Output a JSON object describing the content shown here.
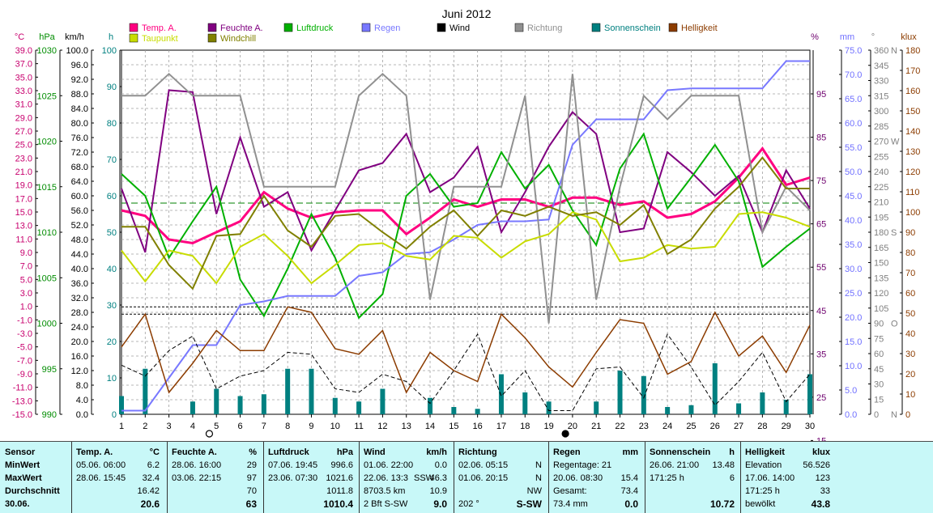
{
  "chart_data": {
    "type": "line",
    "title": "Juni 2012",
    "x": [
      1,
      2,
      3,
      4,
      5,
      6,
      7,
      8,
      9,
      10,
      11,
      12,
      13,
      14,
      15,
      16,
      17,
      18,
      19,
      20,
      21,
      22,
      23,
      24,
      25,
      26,
      27,
      28,
      29,
      30
    ],
    "left_axes": [
      {
        "unit": "°C",
        "color": "#c8006e",
        "ticks": [
          "39.0",
          "37.0",
          "35.0",
          "33.0",
          "31.0",
          "29.0",
          "27.0",
          "25.0",
          "23.0",
          "21.0",
          "19.0",
          "17.0",
          "15.0",
          "13.0",
          "11.0",
          "9.0",
          "7.0",
          "5.0",
          "3.0",
          "1.0",
          "-1.0",
          "-3.0",
          "-5.0",
          "-7.0",
          "-9.0",
          "-11.0",
          "-13.0",
          "-15.0"
        ]
      },
      {
        "unit": "hPa",
        "color": "#008c00",
        "ticks": [
          "1030",
          "1025",
          "1020",
          "1015",
          "1010",
          "1005",
          "1000",
          "995",
          "990"
        ]
      },
      {
        "unit": "km/h",
        "color": "#000000",
        "ticks": [
          "100.0",
          "96.0",
          "92.0",
          "88.0",
          "84.0",
          "80.0",
          "76.0",
          "72.0",
          "68.0",
          "64.0",
          "60.0",
          "56.0",
          "52.0",
          "48.0",
          "44.0",
          "40.0",
          "36.0",
          "32.0",
          "28.0",
          "24.0",
          "20.0",
          "16.0",
          "12.0",
          "8.0",
          "4.0",
          "0.0"
        ]
      },
      {
        "unit": "h",
        "color": "#008080",
        "ticks": [
          "100",
          "90",
          "80",
          "70",
          "60",
          "50",
          "40",
          "30",
          "20",
          "10",
          "0"
        ]
      }
    ],
    "right_axes": [
      {
        "unit": "%",
        "color": "#6e006e",
        "ticks": [
          "95",
          "85",
          "75",
          "65",
          "55",
          "45",
          "35",
          "25",
          "15"
        ]
      },
      {
        "unit": "mm",
        "color": "#7070ff",
        "ticks": [
          "75.0",
          "70.0",
          "65.0",
          "60.0",
          "55.0",
          "50.0",
          "45.0",
          "40.0",
          "35.0",
          "30.0",
          "25.0",
          "20.0",
          "15.0",
          "10.0",
          "5.0",
          "0.0"
        ]
      },
      {
        "unit": "°",
        "color": "#808080",
        "ticks": [
          "360",
          "345",
          "330",
          "315",
          "300",
          "285",
          "270",
          "255",
          "240",
          "225",
          "210",
          "195",
          "180",
          "165",
          "150",
          "135",
          "120",
          "105",
          "90",
          "75",
          "60",
          "45",
          "30",
          "15",
          "0"
        ],
        "compass": {
          "360": "N",
          "270": "W",
          "180": "S",
          "90": "O",
          "0": "N"
        }
      },
      {
        "unit": "klux",
        "color": "#8c3c00",
        "ticks": [
          "180",
          "170",
          "160",
          "150",
          "140",
          "130",
          "120",
          "110",
          "100",
          "90",
          "80",
          "70",
          "60",
          "50",
          "40",
          "30",
          "20",
          "10",
          "0"
        ]
      }
    ],
    "legend": [
      {
        "name": "Temp. A.",
        "color": "#ff0080"
      },
      {
        "name": "Feuchte A.",
        "color": "#800080"
      },
      {
        "name": "Luftdruck",
        "color": "#00b000"
      },
      {
        "name": "Regen",
        "color": "#7878ff"
      },
      {
        "name": "Wind",
        "color": "#000000"
      },
      {
        "name": "Richtung",
        "color": "#909090"
      },
      {
        "name": "Sonnenschein",
        "color": "#008080"
      },
      {
        "name": "Helligkeit",
        "color": "#8c3c00"
      },
      {
        "name": "Taupunkt",
        "color": "#c8dc00"
      },
      {
        "name": "Windchill",
        "color": "#808000"
      }
    ],
    "series": [
      {
        "name": "Temp. A.",
        "axis": "h",
        "color": "#ff0080",
        "width": 3,
        "values": [
          56,
          54.5,
          48,
          47,
          50,
          53,
          61,
          56.5,
          54,
          55.5,
          56,
          56,
          49.5,
          54,
          59,
          57,
          59,
          59,
          57,
          59.5,
          59.5,
          57.5,
          58.5,
          54,
          55,
          58.5,
          65,
          73,
          63,
          65
        ]
      },
      {
        "name": "Feuchte A.",
        "axis": "h",
        "color": "#800080",
        "width": 2,
        "values": [
          62,
          44.5,
          89,
          88.5,
          55,
          76,
          57,
          61,
          45,
          56,
          67,
          69,
          77,
          61,
          65,
          73.5,
          50,
          61,
          73.5,
          83,
          77,
          50,
          51,
          72,
          66.5,
          60,
          65.5,
          50,
          67,
          56.5
        ]
      },
      {
        "name": "Luftdruck",
        "axis": "h",
        "color": "#00b000",
        "width": 2,
        "values": [
          66,
          60,
          43,
          53,
          62.5,
          37,
          27,
          40,
          55,
          43,
          26.5,
          33,
          60,
          66,
          57,
          58,
          72,
          62,
          68.5,
          56,
          46.5,
          67.5,
          77,
          56.5,
          65,
          74,
          64,
          40.5,
          46,
          51
        ]
      },
      {
        "name": "Regen",
        "axis": "h",
        "color": "#7878ff",
        "width": 2,
        "values": [
          1,
          1,
          10,
          19,
          19,
          30,
          31,
          32.5,
          32.5,
          32.5,
          38,
          39,
          44,
          44.5,
          48,
          52,
          53,
          53,
          53.5,
          74,
          81,
          81,
          81,
          89,
          89.5,
          89.5,
          89.5,
          89.5,
          97,
          97
        ]
      },
      {
        "name": "Richtung",
        "axis": "h",
        "color": "#909090",
        "width": 2,
        "values": [
          87.5,
          87.5,
          93.5,
          87.5,
          87.5,
          87.5,
          62.5,
          62.5,
          62.5,
          62.5,
          87.5,
          93.5,
          87.5,
          31.5,
          62.5,
          62.5,
          62.5,
          87.5,
          25,
          93.5,
          31.5,
          62.5,
          87.5,
          81,
          87.5,
          87.5,
          87.5,
          50,
          62.5,
          56
        ]
      },
      {
        "name": "Wind",
        "axis": "h",
        "color": "#000000",
        "width": 1,
        "dash": "5,3",
        "values": [
          13.5,
          10.5,
          17.5,
          21.5,
          7,
          10.5,
          12,
          17,
          16.5,
          7,
          6,
          11,
          9,
          3,
          12,
          22,
          5,
          12,
          1,
          1,
          12.5,
          13,
          4.5,
          22,
          13,
          2.5,
          9,
          17,
          3.5,
          11
        ]
      },
      {
        "name": "Taupunkt",
        "axis": "h",
        "color": "#c8dc00",
        "width": 2,
        "values": [
          45,
          36.5,
          45,
          43.5,
          36,
          46,
          49.5,
          43.5,
          36,
          41,
          46.5,
          47,
          43.5,
          42.5,
          49,
          48.5,
          43,
          47.5,
          49.5,
          55.5,
          53.5,
          42,
          43,
          46.5,
          45.5,
          46,
          55,
          55.5,
          54,
          51.5
        ]
      },
      {
        "name": "Windchill",
        "axis": "h",
        "color": "#808000",
        "width": 2,
        "values": [
          51.5,
          51.5,
          41,
          34.5,
          49,
          49.5,
          60,
          50.5,
          46,
          54.5,
          55,
          50,
          45.5,
          51.5,
          56,
          49,
          56,
          54.5,
          57,
          54.5,
          55.5,
          52,
          57.5,
          44,
          48,
          56.5,
          62.5,
          70.5,
          62,
          62
        ]
      },
      {
        "name": "Helligkeit",
        "axis": "h",
        "color": "#8c3c00",
        "width": 1.5,
        "values": [
          18.5,
          27.5,
          6,
          14,
          23,
          17.5,
          17.5,
          29.5,
          28,
          18,
          16.5,
          23,
          6,
          17,
          12,
          9,
          27.5,
          21,
          13,
          7.5,
          17,
          26,
          25,
          11,
          14.5,
          28,
          16,
          21.5,
          11.5,
          24.5
        ]
      }
    ],
    "sunshine_bars": [
      5,
      12.5,
      0,
      3.5,
      7,
      5,
      5.5,
      12.5,
      12.5,
      4.5,
      3.5,
      7,
      0,
      4.5,
      2,
      1.5,
      11,
      6,
      3.5,
      0,
      3.5,
      12,
      10.5,
      2,
      2.5,
      14,
      3,
      6,
      4,
      11
    ],
    "ref_lines": [
      {
        "axis": "h",
        "value": 58,
        "color": "#008000",
        "dash": "8,4"
      },
      {
        "axis": "h",
        "value": 29.5,
        "color": "#000000",
        "dash": "3,2"
      },
      {
        "axis": "h",
        "value": 27.5,
        "color": "#000000",
        "dash": "3,2"
      }
    ],
    "markers": [
      {
        "x": 4.7,
        "symbol": "open-circle"
      },
      {
        "x": 19.7,
        "symbol": "filled-circle"
      }
    ],
    "xlim": [
      1,
      30
    ],
    "ylim": [
      0,
      100
    ],
    "grid": true
  },
  "stats": {
    "sensor": {
      "header": "Sensor",
      "rows": [
        "MinWert",
        "MaxWert",
        "Durchschnitt"
      ],
      "footer": "30.06."
    },
    "temp": {
      "title": "Temp. A.",
      "unit": "°C",
      "min_time": "05.06.  06:00",
      "min_val": "6.2",
      "max_time": "28.06.  15:45",
      "max_val": "32.4",
      "avg": "16.42",
      "day": "20.6"
    },
    "humidity": {
      "title": "Feuchte A.",
      "unit": "%",
      "min_time": "28.06.  16:00",
      "min_val": "29",
      "max_time": "03.06.  22:15",
      "max_val": "97",
      "avg": "70",
      "day": "63"
    },
    "pressure": {
      "title": "Luftdruck",
      "unit": "hPa",
      "min_time": "07.06.  19:45",
      "min_val": "996.6",
      "max_time": "23.06.  07:30",
      "max_val": "1021.6",
      "avg": "1011.8",
      "day": "1010.4"
    },
    "wind": {
      "title": "Wind",
      "unit": "km/h",
      "min_time": "01.06.  22:00",
      "min_val": "0.0",
      "max_time": "22.06.  13:3",
      "max_dir": "SSW",
      "max_val": "46.3",
      "avg_label": "8703.5 km",
      "avg": "10.9",
      "day_label": "2 Bft S-SW",
      "day": "9.0"
    },
    "direction": {
      "title": "Richtung",
      "min_time": "02.06.  05:15",
      "min_val": "N",
      "max_time": "01.06.  20:15",
      "max_val": "N",
      "avg": "NW",
      "day_deg": "202 °",
      "day": "S-SW"
    },
    "rain": {
      "title": "Regen",
      "unit": "mm",
      "row1": "Regentage: 21",
      "max_time": "20.06.  08:30",
      "max_val": "15.4",
      "total_label": "Gesamt:",
      "total": "73.4",
      "day_label": "73.4 mm",
      "day": "0.0"
    },
    "sunshine": {
      "title": "Sonnenschein",
      "unit": "h",
      "max_time": "26.06.  21:00",
      "max_val": "13.48",
      "avg_label": "171:25 h",
      "avg": "6",
      "day": "10.72"
    },
    "brightness": {
      "title": "Helligkeit",
      "unit": "klux",
      "elev_label": "Elevation",
      "elev_val": "56.526",
      "max_time": "17.06.  14:00",
      "max_val": "123",
      "avg_label": "171:25 h",
      "avg": "33",
      "day_label": "bewölkt",
      "day": "43.8"
    }
  }
}
